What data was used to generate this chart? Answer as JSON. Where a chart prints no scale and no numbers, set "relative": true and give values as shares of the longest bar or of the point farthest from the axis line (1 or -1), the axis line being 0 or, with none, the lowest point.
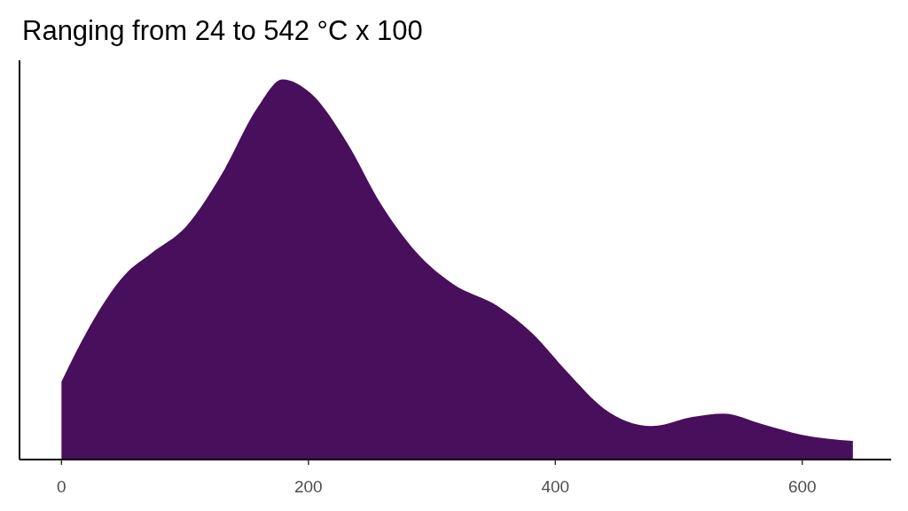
{
  "chart_data": {
    "type": "area",
    "title": "Ranging from 24 to 542 °C x 100",
    "relative": true,
    "xlim": [
      -34,
      672
    ],
    "xticks": [
      0,
      200,
      400,
      600
    ],
    "grid": false,
    "series": [
      {
        "color": "#480f5c",
        "x": [
          0,
          22,
          51,
          73,
          101,
          130,
          159,
          179,
          202,
          231,
          259,
          288,
          317,
          353,
          381,
          410,
          439,
          478,
          511,
          536,
          568,
          600,
          641
        ],
        "values": [
          0.205,
          0.345,
          0.485,
          0.543,
          0.613,
          0.752,
          0.927,
          1.0,
          0.963,
          0.835,
          0.671,
          0.543,
          0.462,
          0.404,
          0.333,
          0.229,
          0.135,
          0.088,
          0.112,
          0.121,
          0.093,
          0.065,
          0.049
        ]
      }
    ]
  }
}
